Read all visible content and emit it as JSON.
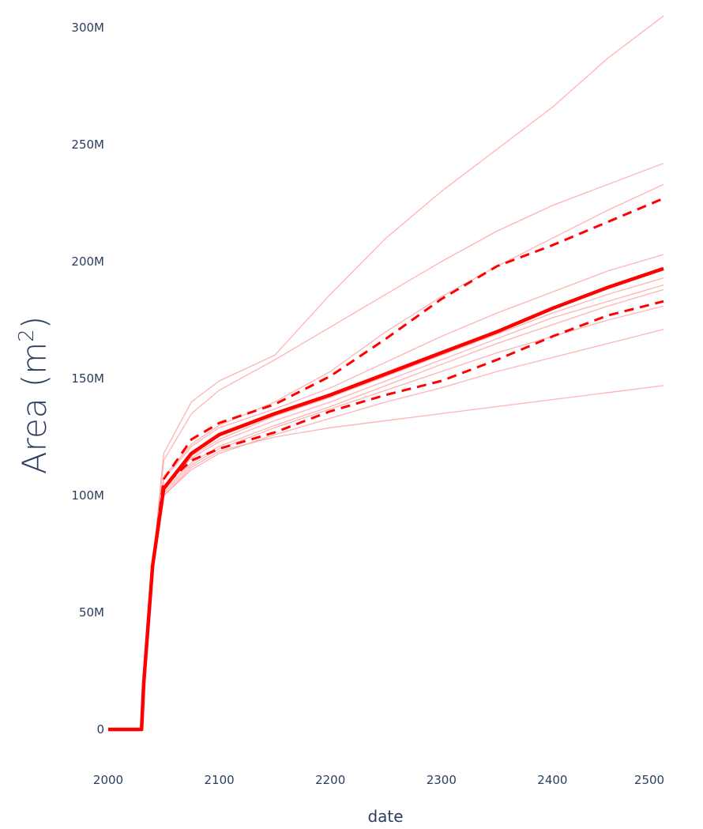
{
  "chart_data": {
    "type": "line",
    "xlabel": "date",
    "ylabel_main": "Area (m",
    "ylabel_sup": "2",
    "ylabel_close": ")",
    "xlim": [
      2000,
      2500
    ],
    "ylim": [
      0,
      300000000
    ],
    "x_ticks": [
      2000,
      2100,
      2200,
      2300,
      2400,
      2500
    ],
    "x_tick_labels": [
      "2000",
      "2100",
      "2200",
      "2300",
      "2400",
      "2500"
    ],
    "y_ticks": [
      0,
      50000000,
      100000000,
      150000000,
      200000000,
      250000000,
      300000000
    ],
    "y_tick_labels": [
      "0",
      "50M",
      "100M",
      "150M",
      "200M",
      "250M",
      "300M"
    ],
    "grid": false,
    "colors": {
      "main": "#ff0000",
      "ensemble": "#ff9999",
      "tick_text": "#2a3f5f"
    },
    "x": [
      2000,
      2030,
      2032,
      2040,
      2050,
      2075,
      2100,
      2150,
      2200,
      2250,
      2300,
      2350,
      2400,
      2450,
      2500
    ],
    "series": [
      {
        "style": "ensemble",
        "values": [
          0,
          0,
          20000000,
          70000000,
          118000000,
          140000000,
          149000000,
          160000000,
          186000000,
          210000000,
          230000000,
          248000000,
          266000000,
          287000000,
          305000000
        ]
      },
      {
        "style": "ensemble",
        "values": [
          0,
          0,
          20000000,
          70000000,
          115000000,
          135000000,
          145000000,
          158000000,
          172000000,
          186000000,
          200000000,
          213000000,
          224000000,
          233000000,
          242000000
        ]
      },
      {
        "style": "ensemble",
        "values": [
          0,
          0,
          20000000,
          70000000,
          108000000,
          122000000,
          130000000,
          140000000,
          153000000,
          170000000,
          185000000,
          198000000,
          210000000,
          222000000,
          233000000
        ]
      },
      {
        "style": "ensemble",
        "values": [
          0,
          0,
          20000000,
          70000000,
          107000000,
          121000000,
          129000000,
          137000000,
          146000000,
          157000000,
          168000000,
          178000000,
          187000000,
          196000000,
          203000000
        ]
      },
      {
        "style": "ensemble",
        "values": [
          0,
          0,
          20000000,
          70000000,
          104000000,
          117000000,
          124000000,
          134000000,
          142000000,
          151000000,
          160000000,
          169000000,
          178000000,
          186000000,
          193000000
        ]
      },
      {
        "style": "ensemble",
        "values": [
          0,
          0,
          20000000,
          70000000,
          103000000,
          116000000,
          123000000,
          132000000,
          140000000,
          149000000,
          158000000,
          167000000,
          176000000,
          183000000,
          190000000
        ]
      },
      {
        "style": "ensemble",
        "values": [
          0,
          0,
          20000000,
          70000000,
          102000000,
          114000000,
          121000000,
          130000000,
          138000000,
          147000000,
          156000000,
          165000000,
          173000000,
          181000000,
          188000000
        ]
      },
      {
        "style": "ensemble",
        "values": [
          0,
          0,
          20000000,
          70000000,
          101000000,
          113000000,
          120000000,
          129000000,
          137000000,
          145000000,
          153000000,
          161000000,
          168000000,
          175000000,
          181000000
        ]
      },
      {
        "style": "ensemble",
        "values": [
          0,
          0,
          20000000,
          70000000,
          100000000,
          111000000,
          118000000,
          126000000,
          133000000,
          140000000,
          146000000,
          153000000,
          159000000,
          165000000,
          171000000
        ]
      },
      {
        "style": "ensemble",
        "values": [
          0,
          0,
          20000000,
          70000000,
          100000000,
          112000000,
          119000000,
          125000000,
          129000000,
          132000000,
          135000000,
          138000000,
          141000000,
          144000000,
          147000000
        ]
      },
      {
        "style": "upper",
        "values": [
          0,
          0,
          20000000,
          70000000,
          107000000,
          124000000,
          131000000,
          139000000,
          151000000,
          167000000,
          184000000,
          198000000,
          207000000,
          217000000,
          227000000
        ]
      },
      {
        "style": "lower",
        "values": [
          0,
          0,
          20000000,
          70000000,
          104000000,
          115000000,
          120000000,
          127000000,
          136000000,
          143000000,
          149000000,
          158000000,
          168000000,
          177000000,
          183000000
        ]
      },
      {
        "style": "median",
        "values": [
          0,
          0,
          20000000,
          70000000,
          103000000,
          118000000,
          126000000,
          135000000,
          143000000,
          152000000,
          161000000,
          170000000,
          180000000,
          189000000,
          197000000
        ]
      }
    ]
  }
}
